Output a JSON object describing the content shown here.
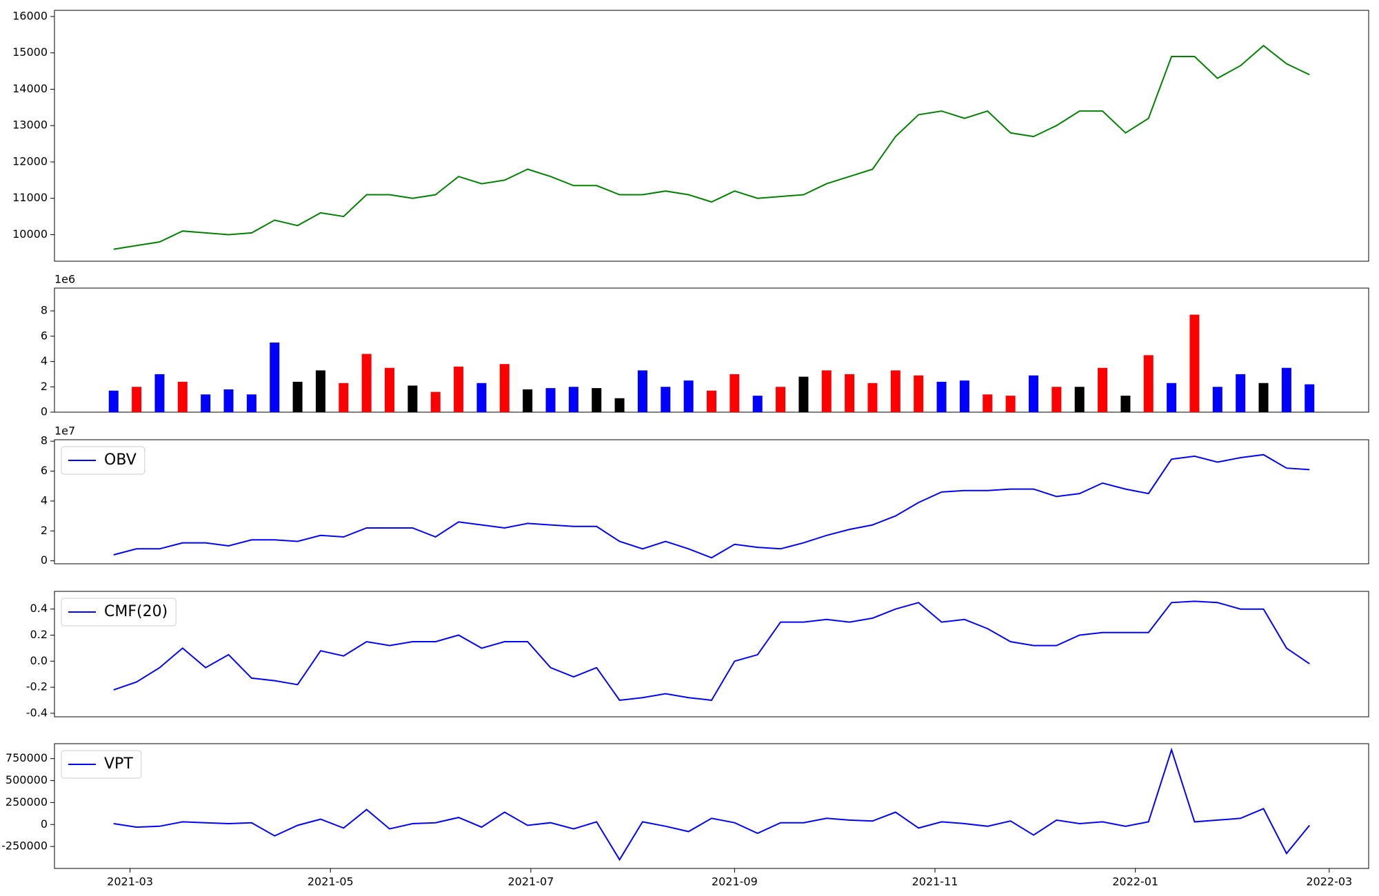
{
  "chart_data": [
    {
      "type": "line",
      "color": "#008000",
      "x": [
        "2021-02-24",
        "2021-03-03",
        "2021-03-10",
        "2021-03-17",
        "2021-03-24",
        "2021-03-31",
        "2021-04-07",
        "2021-04-14",
        "2021-04-21",
        "2021-04-28",
        "2021-05-05",
        "2021-05-12",
        "2021-05-19",
        "2021-05-26",
        "2021-06-02",
        "2021-06-09",
        "2021-06-16",
        "2021-06-23",
        "2021-06-30",
        "2021-07-07",
        "2021-07-14",
        "2021-07-21",
        "2021-07-28",
        "2021-08-04",
        "2021-08-11",
        "2021-08-18",
        "2021-08-25",
        "2021-09-01",
        "2021-09-08",
        "2021-09-15",
        "2021-09-22",
        "2021-09-29",
        "2021-10-06",
        "2021-10-13",
        "2021-10-20",
        "2021-10-27",
        "2021-11-03",
        "2021-11-10",
        "2021-11-17",
        "2021-11-24",
        "2021-12-01",
        "2021-12-08",
        "2021-12-15",
        "2021-12-22",
        "2021-12-29",
        "2022-01-05",
        "2022-01-12",
        "2022-01-19",
        "2022-01-26",
        "2022-02-02",
        "2022-02-09",
        "2022-02-16",
        "2022-02-23"
      ],
      "values": [
        9600,
        9700,
        9800,
        10100,
        10050,
        10000,
        10050,
        10400,
        10250,
        10600,
        10500,
        11100,
        11100,
        11000,
        11100,
        11600,
        11400,
        11500,
        11800,
        11600,
        11350,
        11350,
        11100,
        11100,
        11200,
        11100,
        10900,
        11200,
        11000,
        11050,
        11100,
        11400,
        11600,
        11800,
        12700,
        13300,
        13400,
        13200,
        13400,
        12800,
        12700,
        13000,
        13400,
        13400,
        12800,
        13200,
        14900,
        14900,
        14300,
        14650,
        15200,
        14700,
        14400
      ],
      "ylim": [
        9270,
        16170
      ],
      "yticks": [
        10000,
        11000,
        12000,
        13000,
        14000,
        15000,
        16000
      ]
    },
    {
      "type": "bar",
      "y_offset_label": "1e6",
      "x": [
        "2021-02-24",
        "2021-03-03",
        "2021-03-10",
        "2021-03-17",
        "2021-03-24",
        "2021-03-31",
        "2021-04-07",
        "2021-04-14",
        "2021-04-21",
        "2021-04-28",
        "2021-05-05",
        "2021-05-12",
        "2021-05-19",
        "2021-05-26",
        "2021-06-02",
        "2021-06-09",
        "2021-06-16",
        "2021-06-23",
        "2021-06-30",
        "2021-07-07",
        "2021-07-14",
        "2021-07-21",
        "2021-07-28",
        "2021-08-04",
        "2021-08-11",
        "2021-08-18",
        "2021-08-25",
        "2021-09-01",
        "2021-09-08",
        "2021-09-15",
        "2021-09-22",
        "2021-09-29",
        "2021-10-06",
        "2021-10-13",
        "2021-10-20",
        "2021-10-27",
        "2021-11-03",
        "2021-11-10",
        "2021-11-17",
        "2021-11-24",
        "2021-12-01",
        "2021-12-08",
        "2021-12-15",
        "2021-12-22",
        "2021-12-29",
        "2022-01-05",
        "2022-01-12",
        "2022-01-19",
        "2022-01-26",
        "2022-02-02",
        "2022-02-09",
        "2022-02-16",
        "2022-02-23"
      ],
      "values": [
        1.7,
        2.0,
        3.0,
        2.4,
        1.4,
        1.8,
        1.4,
        5.5,
        2.4,
        3.3,
        2.3,
        4.6,
        3.5,
        2.1,
        1.6,
        3.6,
        2.3,
        3.8,
        1.8,
        1.9,
        2.0,
        1.9,
        1.1,
        3.3,
        2.0,
        2.5,
        1.7,
        3.0,
        1.3,
        2.0,
        2.8,
        3.3,
        3.0,
        2.3,
        3.3,
        2.9,
        2.4,
        2.5,
        1.4,
        1.3,
        2.9,
        2.0,
        2.0,
        3.5,
        1.3,
        4.5,
        2.3,
        7.7,
        2.0,
        3.0,
        2.3,
        3.5,
        2.2
      ],
      "colors": [
        "blue",
        "red",
        "blue",
        "red",
        "blue",
        "blue",
        "blue",
        "blue",
        "black",
        "black",
        "red",
        "red",
        "red",
        "black",
        "red",
        "red",
        "blue",
        "red",
        "black",
        "blue",
        "blue",
        "black",
        "black",
        "blue",
        "blue",
        "blue",
        "red",
        "red",
        "blue",
        "red",
        "black",
        "red",
        "red",
        "red",
        "red",
        "red",
        "blue",
        "blue",
        "red",
        "red",
        "blue",
        "red",
        "black",
        "red",
        "black",
        "red",
        "blue",
        "red",
        "blue",
        "blue",
        "black",
        "blue",
        "blue"
      ],
      "ylim": [
        0,
        9.8
      ],
      "yticks": [
        0,
        2,
        4,
        6,
        8
      ]
    },
    {
      "type": "line",
      "y_offset_label": "1e7",
      "legend": "upper left",
      "x": [
        "2021-02-24",
        "2021-03-03",
        "2021-03-10",
        "2021-03-17",
        "2021-03-24",
        "2021-03-31",
        "2021-04-07",
        "2021-04-14",
        "2021-04-21",
        "2021-04-28",
        "2021-05-05",
        "2021-05-12",
        "2021-05-19",
        "2021-05-26",
        "2021-06-02",
        "2021-06-09",
        "2021-06-16",
        "2021-06-23",
        "2021-06-30",
        "2021-07-07",
        "2021-07-14",
        "2021-07-21",
        "2021-07-28",
        "2021-08-04",
        "2021-08-11",
        "2021-08-18",
        "2021-08-25",
        "2021-09-01",
        "2021-09-08",
        "2021-09-15",
        "2021-09-22",
        "2021-09-29",
        "2021-10-06",
        "2021-10-13",
        "2021-10-20",
        "2021-10-27",
        "2021-11-03",
        "2021-11-10",
        "2021-11-17",
        "2021-11-24",
        "2021-12-01",
        "2021-12-08",
        "2021-12-15",
        "2021-12-22",
        "2021-12-29",
        "2022-01-05",
        "2022-01-12",
        "2022-01-19",
        "2022-01-26",
        "2022-02-02",
        "2022-02-09",
        "2022-02-16",
        "2022-02-23"
      ],
      "series": [
        {
          "name": "OBV",
          "color": "blue",
          "values": [
            0.4,
            0.8,
            0.8,
            1.2,
            1.2,
            1.0,
            1.4,
            1.4,
            1.3,
            1.7,
            1.6,
            2.2,
            2.2,
            2.2,
            1.6,
            2.6,
            2.4,
            2.2,
            2.5,
            2.4,
            2.3,
            2.3,
            1.3,
            0.8,
            1.3,
            0.8,
            0.2,
            1.1,
            0.9,
            0.8,
            1.2,
            1.7,
            2.1,
            2.4,
            3.0,
            3.9,
            4.6,
            4.7,
            4.7,
            4.8,
            4.8,
            4.3,
            4.5,
            5.2,
            4.8,
            4.5,
            6.8,
            7.0,
            6.6,
            6.9,
            7.1,
            6.2,
            6.1
          ]
        }
      ],
      "ylim": [
        -0.2,
        8.1
      ],
      "yticks": [
        0,
        2,
        4,
        6,
        8
      ]
    },
    {
      "type": "line",
      "legend": "upper left",
      "x": [
        "2021-02-24",
        "2021-03-03",
        "2021-03-10",
        "2021-03-17",
        "2021-03-24",
        "2021-03-31",
        "2021-04-07",
        "2021-04-14",
        "2021-04-21",
        "2021-04-28",
        "2021-05-05",
        "2021-05-12",
        "2021-05-19",
        "2021-05-26",
        "2021-06-02",
        "2021-06-09",
        "2021-06-16",
        "2021-06-23",
        "2021-06-30",
        "2021-07-07",
        "2021-07-14",
        "2021-07-21",
        "2021-07-28",
        "2021-08-04",
        "2021-08-11",
        "2021-08-18",
        "2021-08-25",
        "2021-09-01",
        "2021-09-08",
        "2021-09-15",
        "2021-09-22",
        "2021-09-29",
        "2021-10-06",
        "2021-10-13",
        "2021-10-20",
        "2021-10-27",
        "2021-11-03",
        "2021-11-10",
        "2021-11-17",
        "2021-11-24",
        "2021-12-01",
        "2021-12-08",
        "2021-12-15",
        "2021-12-22",
        "2021-12-29",
        "2022-01-05",
        "2022-01-12",
        "2022-01-19",
        "2022-01-26",
        "2022-02-02",
        "2022-02-09",
        "2022-02-16",
        "2022-02-23"
      ],
      "series": [
        {
          "name": "CMF(20)",
          "color": "blue",
          "values": [
            -0.22,
            -0.16,
            -0.05,
            0.1,
            -0.05,
            0.05,
            -0.13,
            -0.15,
            -0.18,
            0.08,
            0.04,
            0.15,
            0.12,
            0.15,
            0.15,
            0.2,
            0.1,
            0.15,
            0.15,
            -0.05,
            -0.12,
            -0.05,
            -0.3,
            -0.28,
            -0.25,
            -0.28,
            -0.3,
            0.0,
            0.05,
            0.3,
            0.3,
            0.32,
            0.3,
            0.33,
            0.4,
            0.45,
            0.3,
            0.32,
            0.25,
            0.15,
            0.12,
            0.12,
            0.2,
            0.22,
            0.22,
            0.22,
            0.45,
            0.46,
            0.45,
            0.4,
            0.4,
            0.1,
            -0.02
          ]
        }
      ],
      "ylim": [
        -0.427,
        0.536
      ],
      "yticks": [
        -0.4,
        -0.2,
        {
          "value": 0,
          "label": "0.0"
        },
        0.2,
        0.4
      ]
    },
    {
      "type": "line",
      "legend": "upper left",
      "x": [
        "2021-02-24",
        "2021-03-03",
        "2021-03-10",
        "2021-03-17",
        "2021-03-24",
        "2021-03-31",
        "2021-04-07",
        "2021-04-14",
        "2021-04-21",
        "2021-04-28",
        "2021-05-05",
        "2021-05-12",
        "2021-05-19",
        "2021-05-26",
        "2021-06-02",
        "2021-06-09",
        "2021-06-16",
        "2021-06-23",
        "2021-06-30",
        "2021-07-07",
        "2021-07-14",
        "2021-07-21",
        "2021-07-28",
        "2021-08-04",
        "2021-08-11",
        "2021-08-18",
        "2021-08-25",
        "2021-09-01",
        "2021-09-08",
        "2021-09-15",
        "2021-09-22",
        "2021-09-29",
        "2021-10-06",
        "2021-10-13",
        "2021-10-20",
        "2021-10-27",
        "2021-11-03",
        "2021-11-10",
        "2021-11-17",
        "2021-11-24",
        "2021-12-01",
        "2021-12-08",
        "2021-12-15",
        "2021-12-22",
        "2021-12-29",
        "2022-01-05",
        "2022-01-12",
        "2022-01-19",
        "2022-01-26",
        "2022-02-02",
        "2022-02-09",
        "2022-02-16",
        "2022-02-23"
      ],
      "series": [
        {
          "name": "VPT",
          "color": "blue",
          "values": [
            10000,
            -30000,
            -20000,
            30000,
            20000,
            10000,
            20000,
            -130000,
            -10000,
            60000,
            -40000,
            170000,
            -50000,
            10000,
            20000,
            80000,
            -30000,
            140000,
            -10000,
            20000,
            -50000,
            30000,
            -400000,
            30000,
            -20000,
            -80000,
            70000,
            20000,
            -100000,
            20000,
            20000,
            70000,
            50000,
            40000,
            140000,
            -40000,
            30000,
            10000,
            -20000,
            40000,
            -120000,
            50000,
            10000,
            30000,
            -20000,
            30000,
            850000,
            30000,
            50000,
            70000,
            180000,
            -330000,
            -10000
          ]
        }
      ],
      "ylim": [
        -500000,
        920000
      ],
      "yticks": [
        -250000,
        0,
        250000,
        500000,
        750000
      ],
      "xlim": [
        "2021-02-06",
        "2022-03-13"
      ],
      "xticks": [
        {
          "value": "2021-03-01",
          "label": "2021-03"
        },
        {
          "value": "2021-05-01",
          "label": "2021-05"
        },
        {
          "value": "2021-07-01",
          "label": "2021-07"
        },
        {
          "value": "2021-09-01",
          "label": "2021-09"
        },
        {
          "value": "2021-11-01",
          "label": "2021-11"
        },
        {
          "value": "2022-01-01",
          "label": "2022-01"
        },
        {
          "value": "2022-03-01",
          "label": "2022-03"
        }
      ]
    }
  ]
}
